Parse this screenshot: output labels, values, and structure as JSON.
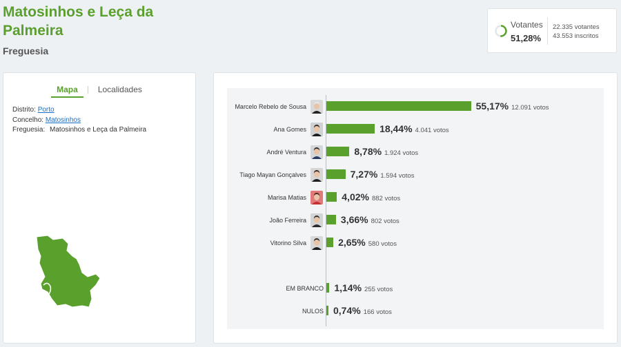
{
  "header": {
    "title": "Matosinhos e Leça da Palmeira",
    "subtitle": "Freguesia"
  },
  "turnout": {
    "label": "Votantes",
    "percent": "51,28%",
    "fraction": 0.5128,
    "votantes": "22.335 votantes",
    "inscritos": "43.553 inscritos"
  },
  "left_panel": {
    "tabs": [
      "Mapa",
      "Localidades"
    ],
    "active_tab": "Mapa",
    "distrito_label": "Distrito:",
    "distrito_value": "Porto",
    "concelho_label": "Concelho:",
    "concelho_value": "Matosinhos",
    "freguesia_label": "Freguesia:",
    "freguesia_value": "Matosinhos e Leça da Palmeira"
  },
  "colors": {
    "accent": "#5aa02c",
    "link": "#1a6fc4"
  },
  "chart_data": {
    "type": "bar",
    "orientation": "horizontal",
    "xlim": [
      0,
      100
    ],
    "grid": false,
    "rows": [
      {
        "name": "Marcelo Rebelo de Sousa",
        "value": 55.17,
        "pct_label": "55,17%",
        "votes_label": "12.091 votos",
        "avatar": true,
        "avatar_bg": "#d9d9d9",
        "hair": "#e8e8e8",
        "shirt": "#222222"
      },
      {
        "name": "Ana Gomes",
        "value": 18.44,
        "pct_label": "18,44%",
        "votes_label": "4.041 votos",
        "avatar": true,
        "avatar_bg": "#cfd2d4",
        "hair": "#3a2a20",
        "shirt": "#1c1c1c"
      },
      {
        "name": "André Ventura",
        "value": 8.78,
        "pct_label": "8,78%",
        "votes_label": "1.924 votos",
        "avatar": true,
        "avatar_bg": "#d4d7da",
        "hair": "#2b2b2b",
        "shirt": "#2a3e66"
      },
      {
        "name": "Tiago Mayan Gonçalves",
        "value": 7.27,
        "pct_label": "7,27%",
        "votes_label": "1.594 votos",
        "avatar": true,
        "avatar_bg": "#d6d6d6",
        "hair": "#3b2b22",
        "shirt": "#1f1f1f"
      },
      {
        "name": "Marisa Matias",
        "value": 4.02,
        "pct_label": "4,02%",
        "votes_label": "882 votos",
        "avatar": true,
        "avatar_bg": "#e07a7a",
        "hair": "#4a2a1e",
        "shirt": "#c8302f"
      },
      {
        "name": "João Ferreira",
        "value": 3.66,
        "pct_label": "3,66%",
        "votes_label": "802 votos",
        "avatar": true,
        "avatar_bg": "#d2d4d6",
        "hair": "#2e2e2e",
        "shirt": "#2b2b2b"
      },
      {
        "name": "Vitorino Silva",
        "value": 2.65,
        "pct_label": "2,65%",
        "votes_label": "580 votos",
        "avatar": true,
        "avatar_bg": "#d8d8d8",
        "hair": "#2a2a2a",
        "shirt": "#1e1e1e"
      },
      {
        "name": "EM BRANCO",
        "value": 1.14,
        "pct_label": "1,14%",
        "votes_label": "255 votos",
        "avatar": false
      },
      {
        "name": "NULOS",
        "value": 0.74,
        "pct_label": "0,74%",
        "votes_label": "166 votos",
        "avatar": false
      }
    ]
  }
}
